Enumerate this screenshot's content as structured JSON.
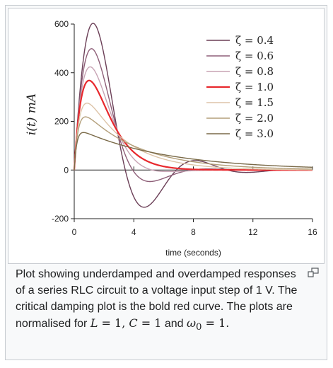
{
  "chart_data": {
    "type": "line",
    "xlabel": "time (seconds)",
    "ylabel": "i(t) mA",
    "xlim": [
      0,
      16
    ],
    "ylim": [
      -200,
      600
    ],
    "xticks": [
      0,
      4,
      8,
      12,
      16
    ],
    "yticks": [
      -200,
      0,
      200,
      400,
      600
    ],
    "legend_position": "top-right",
    "grid": false,
    "series": [
      {
        "name": "ζ = 0.4",
        "zeta": 0.4,
        "color": "#6b3f57",
        "width": 1.4
      },
      {
        "name": "ζ = 0.6",
        "zeta": 0.6,
        "color": "#8e5f78",
        "width": 1.4
      },
      {
        "name": "ζ = 0.8",
        "zeta": 0.8,
        "color": "#c7a3b4",
        "width": 1.4
      },
      {
        "name": "ζ = 1.0",
        "zeta": 1.0,
        "color": "#e8282d",
        "width": 2.2
      },
      {
        "name": "ζ = 1.5",
        "zeta": 1.5,
        "color": "#ddc4a8",
        "width": 1.4
      },
      {
        "name": "ζ = 2.0",
        "zeta": 2.0,
        "color": "#b39f7a",
        "width": 1.4
      },
      {
        "name": "ζ = 3.0",
        "zeta": 3.0,
        "color": "#7a6a48",
        "width": 1.4
      }
    ]
  },
  "caption": {
    "text_1": "Plot showing underdamped and overdamped responses of a series RLC circuit to a voltage input step of 1 V. The critical damping plot is the bold red curve. The plots are normalised for ",
    "L": "L",
    "eq1": " = 1, ",
    "C": "C",
    "eq2": " = 1",
    "and": " and ",
    "omega": "ω",
    "sub0": "0",
    "eq3": " = 1."
  },
  "enlarge_icon": "enlarge-icon"
}
